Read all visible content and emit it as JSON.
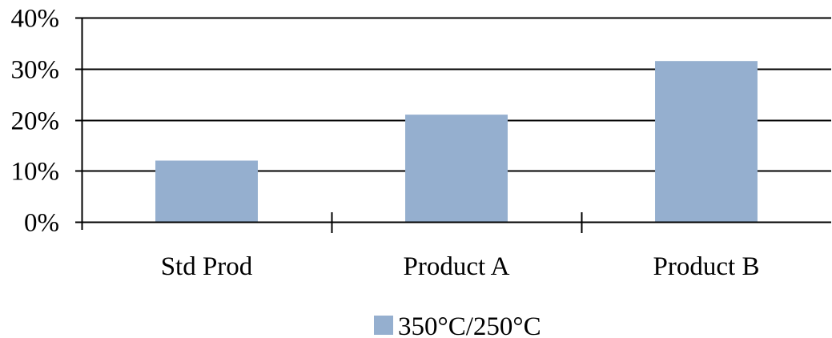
{
  "chart_data": {
    "type": "bar",
    "title": "",
    "xlabel": "",
    "ylabel": "",
    "categories": [
      "Std Prod",
      "Product A",
      "Product B"
    ],
    "series": [
      {
        "name": "350°C/250°C",
        "values": [
          0.12,
          0.21,
          0.315
        ]
      }
    ],
    "ylim": [
      0,
      0.4
    ],
    "y_ticks": [
      0,
      0.1,
      0.2,
      0.3,
      0.4
    ],
    "y_tick_labels": [
      "0%",
      "10%",
      "20%",
      "30%",
      "40%"
    ],
    "grid": true,
    "legend_position": "bottom-center",
    "colors": {
      "bar": "#95afcf",
      "grid": "#000000",
      "axis": "#000000",
      "text": "#000000"
    }
  }
}
